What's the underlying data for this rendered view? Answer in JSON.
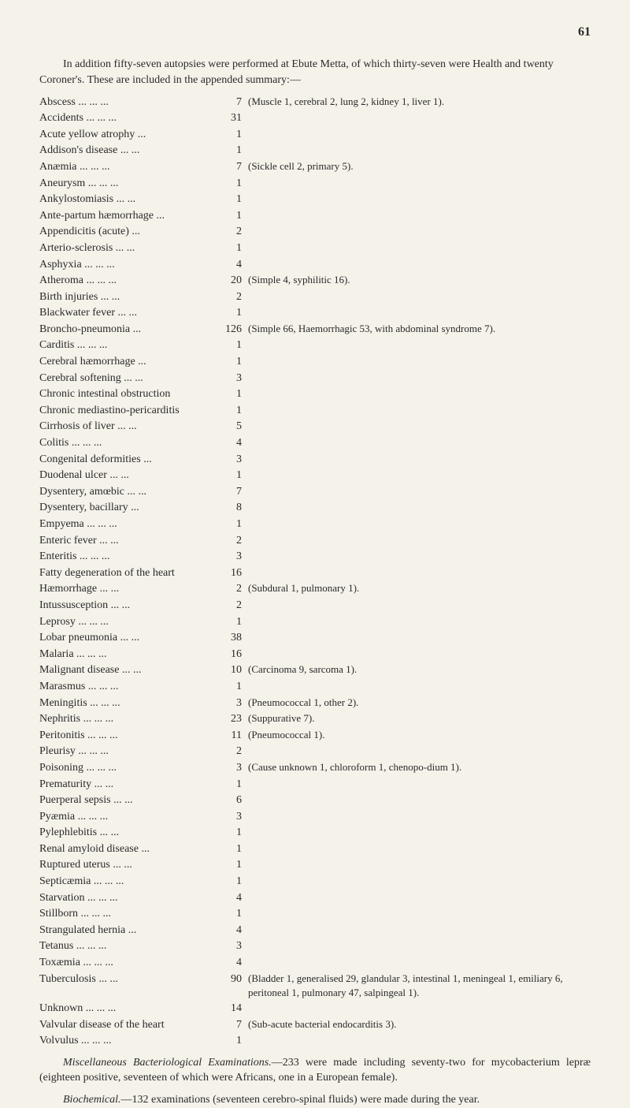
{
  "pageNumber": "61",
  "intro": "In addition fifty-seven autopsies were performed at Ebute Metta, of which thirty-seven were Health and twenty Coroner's. These are included in the appended summary:—",
  "entries": [
    {
      "label": "Abscess",
      "dots": "...   ...   ...",
      "count": "7",
      "note": "(Muscle 1, cerebral 2, lung 2, kidney 1, liver 1)."
    },
    {
      "label": "Accidents",
      "dots": "...   ...   ...",
      "count": "31",
      "note": ""
    },
    {
      "label": "Acute yellow atrophy",
      "dots": "...",
      "count": "1",
      "note": ""
    },
    {
      "label": "Addison's disease ...",
      "dots": "...",
      "count": "1",
      "note": ""
    },
    {
      "label": "Anæmia",
      "dots": "...   ...   ...",
      "count": "7",
      "note": "(Sickle cell 2, primary 5)."
    },
    {
      "label": "Aneurysm",
      "dots": "...   ...   ...",
      "count": "1",
      "note": ""
    },
    {
      "label": "Ankylostomiasis",
      "dots": "...   ...",
      "count": "1",
      "note": ""
    },
    {
      "label": "Ante-partum hæmorrhage ...",
      "dots": "",
      "count": "1",
      "note": ""
    },
    {
      "label": "Appendicitis (acute)",
      "dots": "...",
      "count": "2",
      "note": ""
    },
    {
      "label": "Arterio-sclerosis",
      "dots": "...   ...",
      "count": "1",
      "note": ""
    },
    {
      "label": "Asphyxia",
      "dots": "...   ...   ...",
      "count": "4",
      "note": ""
    },
    {
      "label": "Atheroma",
      "dots": "...   ...   ...",
      "count": "20",
      "note": "(Simple 4, syphilitic 16)."
    },
    {
      "label": "Birth injuries",
      "dots": "...   ...",
      "count": "2",
      "note": ""
    },
    {
      "label": "Blackwater fever",
      "dots": "...   ...",
      "count": "1",
      "note": ""
    },
    {
      "label": "Broncho-pneumonia",
      "dots": "...",
      "count": "126",
      "note": "(Simple 66, Haemorrhagic 53, with abdominal syndrome 7)."
    },
    {
      "label": "Carditis",
      "dots": "...   ...   ...",
      "count": "1",
      "note": ""
    },
    {
      "label": "Cerebral hæmorrhage",
      "dots": "...",
      "count": "1",
      "note": ""
    },
    {
      "label": "Cerebral softening ...",
      "dots": "...",
      "count": "3",
      "note": ""
    },
    {
      "label": "Chronic intestinal obstruction",
      "dots": "",
      "count": "1",
      "note": ""
    },
    {
      "label": "Chronic mediastino-pericarditis",
      "dots": "",
      "count": "1",
      "note": ""
    },
    {
      "label": "Cirrhosis of liver",
      "dots": "...   ...",
      "count": "5",
      "note": ""
    },
    {
      "label": "Colitis",
      "dots": "...   ...   ...",
      "count": "4",
      "note": ""
    },
    {
      "label": "Congenital deformities",
      "dots": "...",
      "count": "3",
      "note": ""
    },
    {
      "label": "Duodenal ulcer",
      "dots": "...   ...",
      "count": "1",
      "note": ""
    },
    {
      "label": "Dysentery, amœbic ...",
      "dots": "...",
      "count": "7",
      "note": ""
    },
    {
      "label": "Dysentery, bacillary",
      "dots": "...",
      "count": "8",
      "note": ""
    },
    {
      "label": "Empyema",
      "dots": "...   ...   ...",
      "count": "1",
      "note": ""
    },
    {
      "label": "Enteric fever",
      "dots": "...   ...",
      "count": "2",
      "note": ""
    },
    {
      "label": "Enteritis",
      "dots": "...   ...   ...",
      "count": "3",
      "note": ""
    },
    {
      "label": "Fatty degeneration of the heart",
      "dots": "",
      "count": "16",
      "note": ""
    },
    {
      "label": "Hæmorrhage",
      "dots": "...   ...",
      "count": "2",
      "note": "(Subdural 1, pulmonary 1)."
    },
    {
      "label": "Intussusception",
      "dots": "...   ...",
      "count": "2",
      "note": ""
    },
    {
      "label": "Leprosy",
      "dots": "...   ...   ...",
      "count": "1",
      "note": ""
    },
    {
      "label": "Lobar pneumonia ...",
      "dots": "...",
      "count": "38",
      "note": ""
    },
    {
      "label": "Malaria",
      "dots": "...   ...   ...",
      "count": "16",
      "note": ""
    },
    {
      "label": "Malignant disease ...",
      "dots": "...",
      "count": "10",
      "note": "(Carcinoma 9, sarcoma 1)."
    },
    {
      "label": "Marasmus",
      "dots": "...   ...   ...",
      "count": "1",
      "note": ""
    },
    {
      "label": "Meningitis",
      "dots": "...   ...   ...",
      "count": "3",
      "note": "(Pneumococcal 1, other 2)."
    },
    {
      "label": "Nephritis",
      "dots": "...   ...   ...",
      "count": "23",
      "note": "(Suppurative 7)."
    },
    {
      "label": "Peritonitis",
      "dots": "...   ...   ...",
      "count": "11",
      "note": "(Pneumococcal 1)."
    },
    {
      "label": "Pleurisy",
      "dots": "...   ...   ...",
      "count": "2",
      "note": ""
    },
    {
      "label": "Poisoning",
      "dots": "...   ...   ...",
      "count": "3",
      "note": "(Cause unknown 1, chloroform 1, chenopo-dium 1)."
    },
    {
      "label": "Prematurity",
      "dots": "...   ...",
      "count": "1",
      "note": ""
    },
    {
      "label": "Puerperal sepsis",
      "dots": "...   ...",
      "count": "6",
      "note": ""
    },
    {
      "label": "Pyæmia",
      "dots": "...   ...   ...",
      "count": "3",
      "note": ""
    },
    {
      "label": "Pylephlebitis",
      "dots": "...   ...",
      "count": "1",
      "note": ""
    },
    {
      "label": "Renal amyloid disease",
      "dots": "...",
      "count": "1",
      "note": ""
    },
    {
      "label": "Ruptured uterus",
      "dots": "...   ...",
      "count": "1",
      "note": ""
    },
    {
      "label": "Septicæmia ...",
      "dots": "...   ...",
      "count": "1",
      "note": ""
    },
    {
      "label": "Starvation",
      "dots": "...   ...   ...",
      "count": "4",
      "note": ""
    },
    {
      "label": "Stillborn",
      "dots": "...   ...   ...",
      "count": "1",
      "note": ""
    },
    {
      "label": "Strangulated hernia",
      "dots": "...",
      "count": "4",
      "note": ""
    },
    {
      "label": "Tetanus",
      "dots": "...   ...   ...",
      "count": "3",
      "note": ""
    },
    {
      "label": "Toxæmia",
      "dots": "...   ...   ...",
      "count": "4",
      "note": ""
    },
    {
      "label": "Tuberculosis",
      "dots": "...   ...",
      "count": "90",
      "note": "(Bladder 1, generalised 29, glandular 3, intestinal 1, meningeal 1, emiliary 6, peritoneal 1, pulmonary 47, salpingeal 1)."
    },
    {
      "label": "Unknown",
      "dots": "...   ...   ...",
      "count": "14",
      "note": ""
    },
    {
      "label": "Valvular disease of the heart",
      "dots": "",
      "count": "7",
      "note": "(Sub-acute bacterial endocarditis 3)."
    },
    {
      "label": "Volvulus",
      "dots": "...   ...   ...",
      "count": "1",
      "note": ""
    }
  ],
  "footer1": {
    "prefix": "Miscellaneous Bacteriological Examinations.",
    "text": "—233 were made including seventy-two for mycobacterium lepræ (eighteen positive, seventeen of which were Africans, one in a European female)."
  },
  "footer2": {
    "prefix": "Biochemical.",
    "text": "—132 examinations (seventeen cerebro-spinal fluids) were made during the year."
  }
}
